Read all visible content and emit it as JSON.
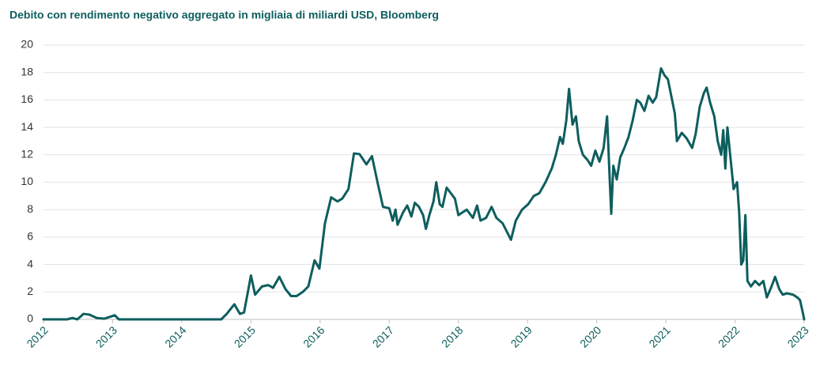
{
  "chart_data": {
    "type": "line",
    "title": "Debito con rendimento negativo aggregato in migliaia di miliardi USD, Bloomberg",
    "color": "#0e5e5e",
    "grid": true,
    "xlim": [
      2012,
      2023
    ],
    "xticks": [
      2012,
      2013,
      2014,
      2015,
      2016,
      2017,
      2018,
      2019,
      2020,
      2021,
      2022,
      2023
    ],
    "ylim": [
      0,
      20
    ],
    "yticks": [
      0,
      2,
      4,
      6,
      8,
      10,
      12,
      14,
      16,
      18,
      20
    ],
    "x": [
      2012.0,
      2012.34,
      2012.42,
      2012.49,
      2012.58,
      2012.66,
      2012.77,
      2012.88,
      2012.97,
      2013.03,
      2013.09,
      2014.57,
      2014.65,
      2014.76,
      2014.84,
      2014.9,
      2015.0,
      2015.06,
      2015.16,
      2015.25,
      2015.32,
      2015.41,
      2015.5,
      2015.58,
      2015.66,
      2015.75,
      2015.83,
      2015.92,
      2015.99,
      2016.07,
      2016.16,
      2016.25,
      2016.32,
      2016.41,
      2016.49,
      2016.57,
      2016.67,
      2016.75,
      2016.83,
      2016.91,
      2017.0,
      2017.05,
      2017.09,
      2017.12,
      2017.2,
      2017.26,
      2017.32,
      2017.37,
      2017.43,
      2017.49,
      2017.53,
      2017.58,
      2017.64,
      2017.68,
      2017.73,
      2017.77,
      2017.83,
      2017.89,
      2017.95,
      2018.0,
      2018.06,
      2018.12,
      2018.21,
      2018.27,
      2018.32,
      2018.4,
      2018.48,
      2018.55,
      2018.64,
      2018.71,
      2018.76,
      2018.83,
      2018.92,
      2019.01,
      2019.09,
      2019.17,
      2019.26,
      2019.35,
      2019.41,
      2019.47,
      2019.51,
      2019.56,
      2019.6,
      2019.65,
      2019.7,
      2019.74,
      2019.8,
      2019.87,
      2019.92,
      2019.98,
      2020.04,
      2020.1,
      2020.15,
      2020.19,
      2020.21,
      2020.24,
      2020.29,
      2020.34,
      2020.4,
      2020.46,
      2020.52,
      2020.58,
      2020.63,
      2020.69,
      2020.75,
      2020.81,
      2020.86,
      2020.93,
      2020.98,
      2021.03,
      2021.09,
      2021.13,
      2021.16,
      2021.23,
      2021.3,
      2021.38,
      2021.43,
      2021.49,
      2021.55,
      2021.59,
      2021.64,
      2021.7,
      2021.75,
      2021.8,
      2021.83,
      2021.86,
      2021.89,
      2021.94,
      2021.98,
      2022.03,
      2022.06,
      2022.09,
      2022.12,
      2022.15,
      2022.18,
      2022.23,
      2022.29,
      2022.35,
      2022.41,
      2022.46,
      2022.52,
      2022.58,
      2022.64,
      2022.69,
      2022.75,
      2022.84,
      2022.9,
      2022.94,
      2022.98,
      2023.0
    ],
    "values": [
      0,
      0,
      0.1,
      0,
      0.4,
      0.35,
      0.1,
      0.05,
      0.2,
      0.3,
      0,
      0,
      0.4,
      1.1,
      0.4,
      0.5,
      3.2,
      1.8,
      2.4,
      2.5,
      2.3,
      3.1,
      2.2,
      1.7,
      1.7,
      2.0,
      2.4,
      4.3,
      3.7,
      7.0,
      8.9,
      8.6,
      8.8,
      9.5,
      12.1,
      12.05,
      11.3,
      11.9,
      10.0,
      8.2,
      8.1,
      7.2,
      8.0,
      6.9,
      7.8,
      8.3,
      7.5,
      8.5,
      8.2,
      7.6,
      6.6,
      7.6,
      8.6,
      10.0,
      8.4,
      8.2,
      9.6,
      9.2,
      8.8,
      7.6,
      7.8,
      8.0,
      7.4,
      8.3,
      7.2,
      7.4,
      8.2,
      7.4,
      7.0,
      6.3,
      5.8,
      7.2,
      8.0,
      8.4,
      9.0,
      9.2,
      10.0,
      11.0,
      12.0,
      13.3,
      12.8,
      14.5,
      16.8,
      14.2,
      14.8,
      13.0,
      12.0,
      11.6,
      11.2,
      12.3,
      11.5,
      12.5,
      14.8,
      10.0,
      7.7,
      11.2,
      10.2,
      11.8,
      12.5,
      13.3,
      14.5,
      16.0,
      15.8,
      15.2,
      16.3,
      15.8,
      16.2,
      18.3,
      17.8,
      17.5,
      16.0,
      15.0,
      13.0,
      13.6,
      13.2,
      12.5,
      13.5,
      15.5,
      16.5,
      16.9,
      15.8,
      14.8,
      13.0,
      12.0,
      13.8,
      11.0,
      14.0,
      11.5,
      9.5,
      10.0,
      7.8,
      4.0,
      4.3,
      7.6,
      2.8,
      2.4,
      2.8,
      2.5,
      2.8,
      1.6,
      2.3,
      3.1,
      2.2,
      1.8,
      1.9,
      1.8,
      1.6,
      1.4,
      0.5,
      0
    ]
  }
}
